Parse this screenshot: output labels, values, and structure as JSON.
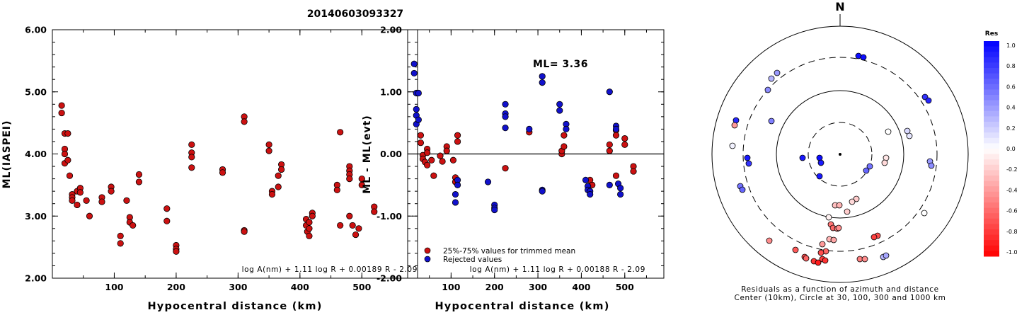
{
  "title": "20140603093327",
  "chart_data": [
    {
      "type": "scatter",
      "ylabel": "ML(IASPEI)",
      "xlabel": "Hypocentral distance (km)",
      "xlim": [
        0,
        590
      ],
      "ylim": [
        2.0,
        6.0
      ],
      "xticks": [
        "100",
        "200",
        "300",
        "400",
        "500"
      ],
      "yticks": [
        "2.00",
        "3.00",
        "4.00",
        "5.00",
        "6.00"
      ],
      "formula": "log A(nm) + 1.11 log R + 0.00189 R - 2.09",
      "points": [
        [
          15,
          4.78
        ],
        [
          15,
          4.66
        ],
        [
          20,
          4.33
        ],
        [
          20,
          4.08
        ],
        [
          20,
          4.0
        ],
        [
          20,
          3.85
        ],
        [
          25,
          4.33
        ],
        [
          25,
          3.9
        ],
        [
          28,
          3.65
        ],
        [
          32,
          3.35
        ],
        [
          32,
          3.3
        ],
        [
          32,
          3.25
        ],
        [
          40,
          3.18
        ],
        [
          40,
          3.4
        ],
        [
          45,
          3.45
        ],
        [
          45,
          3.38
        ],
        [
          55,
          3.25
        ],
        [
          60,
          3.0
        ],
        [
          80,
          3.3
        ],
        [
          80,
          3.23
        ],
        [
          95,
          3.47
        ],
        [
          95,
          3.4
        ],
        [
          110,
          2.68
        ],
        [
          110,
          2.56
        ],
        [
          120,
          3.25
        ],
        [
          125,
          2.98
        ],
        [
          125,
          2.9
        ],
        [
          130,
          2.85
        ],
        [
          140,
          3.67
        ],
        [
          140,
          3.55
        ],
        [
          185,
          3.12
        ],
        [
          185,
          2.92
        ],
        [
          200,
          2.53
        ],
        [
          200,
          2.47
        ],
        [
          200,
          2.43
        ],
        [
          225,
          4.15
        ],
        [
          225,
          4.02
        ],
        [
          225,
          3.95
        ],
        [
          225,
          3.78
        ],
        [
          275,
          3.75
        ],
        [
          275,
          3.7
        ],
        [
          310,
          4.6
        ],
        [
          310,
          4.52
        ],
        [
          310,
          2.77
        ],
        [
          310,
          2.75
        ],
        [
          350,
          4.15
        ],
        [
          350,
          4.05
        ],
        [
          355,
          3.4
        ],
        [
          355,
          3.35
        ],
        [
          365,
          3.65
        ],
        [
          365,
          3.47
        ],
        [
          370,
          3.83
        ],
        [
          370,
          3.75
        ],
        [
          410,
          2.95
        ],
        [
          410,
          2.85
        ],
        [
          412,
          2.75
        ],
        [
          415,
          2.68
        ],
        [
          415,
          2.8
        ],
        [
          415,
          2.9
        ],
        [
          420,
          3.05
        ],
        [
          420,
          3.0
        ],
        [
          465,
          4.35
        ],
        [
          460,
          3.5
        ],
        [
          460,
          3.42
        ],
        [
          465,
          2.85
        ],
        [
          480,
          3.8
        ],
        [
          480,
          3.73
        ],
        [
          480,
          3.67
        ],
        [
          480,
          3.6
        ],
        [
          480,
          3.0
        ],
        [
          485,
          2.85
        ],
        [
          490,
          2.7
        ],
        [
          495,
          2.8
        ],
        [
          500,
          3.6
        ],
        [
          500,
          3.5
        ],
        [
          520,
          3.15
        ],
        [
          520,
          3.07
        ]
      ]
    },
    {
      "type": "scatter",
      "ylabel": "ML - ML(evt)",
      "xlabel": "Hypocentral distance (km)",
      "xlim": [
        0,
        590
      ],
      "ylim": [
        -2.0,
        2.0
      ],
      "xticks": [
        "100",
        "200",
        "300",
        "400",
        "500"
      ],
      "yticks": [
        "-2.00",
        "-1.00",
        "0.00",
        "1.00",
        "2.00"
      ],
      "annotation": "ML= 3.36",
      "formula": "log A(nm) + 1.11 log R + 0.00188 R - 2.09",
      "legend": [
        "25%-75% values for trimmed mean",
        "Rejected values"
      ],
      "colors": {
        "trimmed": "#cc1111",
        "rejected": "#1111cc",
        "zero_line": "#000000"
      },
      "trimmed_points": [
        [
          30,
          0.3
        ],
        [
          30,
          0.18
        ],
        [
          35,
          -0.02
        ],
        [
          35,
          -0.08
        ],
        [
          40,
          -0.13
        ],
        [
          45,
          -0.18
        ],
        [
          45,
          0.08
        ],
        [
          45,
          0.02
        ],
        [
          55,
          -0.1
        ],
        [
          60,
          -0.35
        ],
        [
          75,
          -0.03
        ],
        [
          80,
          -0.12
        ],
        [
          90,
          0.12
        ],
        [
          90,
          0.05
        ],
        [
          105,
          -0.1
        ],
        [
          110,
          -0.38
        ],
        [
          110,
          -0.45
        ],
        [
          115,
          0.3
        ],
        [
          115,
          0.2
        ],
        [
          225,
          -0.23
        ],
        [
          280,
          0.35
        ],
        [
          355,
          0.0
        ],
        [
          355,
          0.05
        ],
        [
          360,
          0.3
        ],
        [
          360,
          0.12
        ],
        [
          420,
          -0.42
        ],
        [
          425,
          -0.5
        ],
        [
          465,
          0.15
        ],
        [
          465,
          0.05
        ],
        [
          480,
          0.38
        ],
        [
          480,
          0.3
        ],
        [
          480,
          -0.35
        ],
        [
          500,
          0.25
        ],
        [
          500,
          0.15
        ],
        [
          520,
          -0.2
        ],
        [
          520,
          -0.28
        ]
      ],
      "rejected_points": [
        [
          15,
          1.45
        ],
        [
          15,
          1.3
        ],
        [
          20,
          0.98
        ],
        [
          20,
          0.72
        ],
        [
          20,
          0.62
        ],
        [
          20,
          0.48
        ],
        [
          25,
          0.98
        ],
        [
          25,
          0.55
        ],
        [
          110,
          -0.65
        ],
        [
          110,
          -0.78
        ],
        [
          115,
          -0.42
        ],
        [
          115,
          -0.5
        ],
        [
          185,
          -0.45
        ],
        [
          200,
          -0.82
        ],
        [
          200,
          -0.87
        ],
        [
          200,
          -0.9
        ],
        [
          225,
          0.8
        ],
        [
          225,
          0.65
        ],
        [
          225,
          0.6
        ],
        [
          225,
          0.42
        ],
        [
          280,
          0.4
        ],
        [
          310,
          1.25
        ],
        [
          310,
          1.15
        ],
        [
          310,
          -0.58
        ],
        [
          310,
          -0.6
        ],
        [
          350,
          0.8
        ],
        [
          350,
          0.7
        ],
        [
          365,
          0.48
        ],
        [
          365,
          0.4
        ],
        [
          410,
          -0.42
        ],
        [
          415,
          -0.52
        ],
        [
          415,
          -0.58
        ],
        [
          420,
          -0.6
        ],
        [
          420,
          -0.65
        ],
        [
          465,
          1.0
        ],
        [
          465,
          -0.5
        ],
        [
          480,
          0.45
        ],
        [
          480,
          0.4
        ],
        [
          485,
          -0.48
        ],
        [
          490,
          -0.55
        ],
        [
          490,
          -0.65
        ]
      ]
    }
  ],
  "polar_plot": {
    "north_label": "N",
    "caption_line1": "Residuals as a function of azimuth and distance",
    "caption_line2": "Center (10km), Circle at 30, 100, 300 and 1000 km",
    "colorbar_title": "Res",
    "colorbar_labels": [
      "1.0",
      "0.8",
      "0.6",
      "0.4",
      "0.2",
      "0.0",
      "-0.2",
      "-0.4",
      "-0.6",
      "-0.8",
      "-1.0"
    ],
    "stations": [
      [
        1213,
        79,
        0.95
      ],
      [
        1220,
        81,
        0.95
      ],
      [
        1098,
        103,
        0.4
      ],
      [
        1090,
        111,
        0.3
      ],
      [
        1085,
        127,
        0.45
      ],
      [
        1307,
        137,
        0.8
      ],
      [
        1312,
        142,
        0.85
      ],
      [
        1040,
        170,
        0.85
      ],
      [
        1038,
        177,
        -0.4
      ],
      [
        1090,
        171,
        0.5
      ],
      [
        1255,
        186,
        0.0
      ],
      [
        1282,
        185,
        0.15
      ],
      [
        1285,
        192,
        0.1
      ],
      [
        1035,
        206,
        0.05
      ],
      [
        1134,
        223,
        0.9
      ],
      [
        1158,
        223,
        0.95
      ],
      [
        1160,
        230,
        0.9
      ],
      [
        1056,
        223,
        0.9
      ],
      [
        1058,
        231,
        0.8
      ],
      [
        1252,
        223,
        -0.1
      ],
      [
        1250,
        230,
        -0.15
      ],
      [
        1224,
        241,
        0.6
      ],
      [
        1229,
        235,
        0.55
      ],
      [
        1314,
        228,
        0.4
      ],
      [
        1316,
        234,
        0.45
      ],
      [
        1158,
        249,
        0.9
      ],
      [
        1046,
        263,
        0.55
      ],
      [
        1049,
        268,
        0.6
      ],
      [
        1210,
        281,
        -0.2
      ],
      [
        1204,
        285,
        -0.15
      ],
      [
        1180,
        290,
        -0.25
      ],
      [
        1186,
        290,
        -0.3
      ],
      [
        1197,
        299,
        -0.2
      ],
      [
        1171,
        307,
        -0.05
      ],
      [
        1174,
        317,
        -0.55
      ],
      [
        1177,
        322,
        -0.6
      ],
      [
        1183,
        323,
        -0.5
      ],
      [
        1185,
        322,
        -0.45
      ],
      [
        1306,
        301,
        0.0
      ],
      [
        1240,
        333,
        -0.7
      ],
      [
        1235,
        335,
        -0.75
      ],
      [
        1087,
        340,
        -0.45
      ],
      [
        1172,
        338,
        -0.3
      ],
      [
        1178,
        339,
        -0.35
      ],
      [
        1162,
        345,
        -0.4
      ],
      [
        1167,
        355,
        -0.6
      ],
      [
        1160,
        357,
        -0.7
      ],
      [
        1162,
        366,
        -0.75
      ],
      [
        1166,
        368,
        -0.8
      ],
      [
        1124,
        353,
        -0.65
      ],
      [
        1137,
        363,
        -0.7
      ],
      [
        1139,
        365,
        -0.6
      ],
      [
        1150,
        369,
        -0.8
      ],
      [
        1156,
        371,
        -0.9
      ],
      [
        1215,
        366,
        -0.5
      ],
      [
        1222,
        366,
        -0.45
      ],
      [
        1248,
        363,
        0.3
      ],
      [
        1252,
        361,
        0.35
      ]
    ]
  }
}
